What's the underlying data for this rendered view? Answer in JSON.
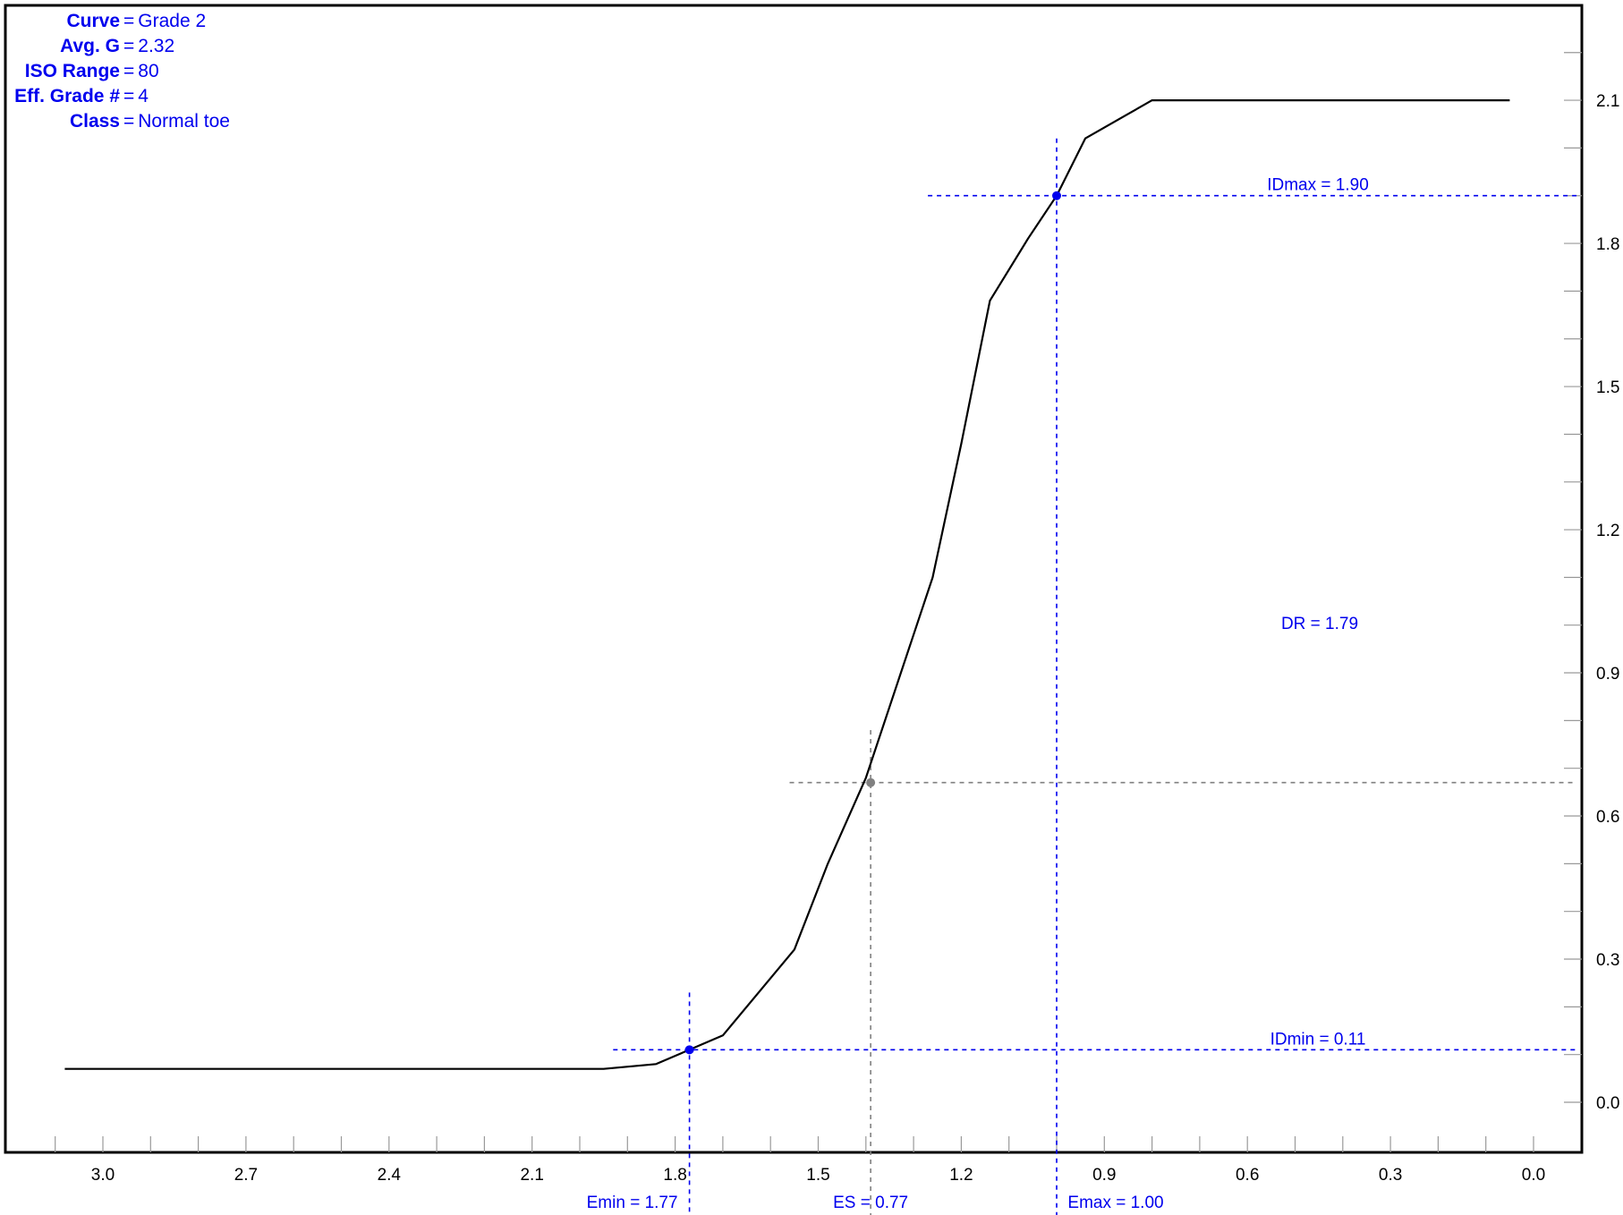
{
  "info": {
    "rows": [
      {
        "key": "Curve",
        "value": "Grade 2"
      },
      {
        "key": "Avg. G",
        "value": "2.32"
      },
      {
        "key": "ISO Range",
        "value": "80"
      },
      {
        "key": "Eff. Grade #",
        "value": "4"
      },
      {
        "key": "Class",
        "value": "Normal toe"
      }
    ]
  },
  "colors": {
    "curve": "#000000",
    "marker": "#0000ee",
    "es_marker": "#808080",
    "frame": "#000000"
  },
  "chart_data": {
    "type": "line",
    "x_ticks": [
      "3.0",
      "2.7",
      "2.4",
      "2.1",
      "1.8",
      "1.5",
      "1.2",
      "0.9",
      "0.6",
      "0.3",
      "0.0"
    ],
    "y_ticks": [
      "0.0",
      "0.3",
      "0.6",
      "0.9",
      "1.2",
      "1.5",
      "1.8",
      "2.1"
    ],
    "xlim": [
      3.18,
      -0.1
    ],
    "ylim": [
      -0.1,
      2.28
    ],
    "x_reversed": true,
    "series": [
      {
        "points": [
          [
            3.08,
            0.07
          ],
          [
            1.95,
            0.07
          ],
          [
            1.84,
            0.08
          ],
          [
            1.77,
            0.11
          ],
          [
            1.7,
            0.14
          ],
          [
            1.55,
            0.32
          ],
          [
            1.48,
            0.5
          ],
          [
            1.4,
            0.68
          ],
          [
            1.33,
            0.89
          ],
          [
            1.26,
            1.1
          ],
          [
            1.2,
            1.38
          ],
          [
            1.14,
            1.68
          ],
          [
            1.06,
            1.81
          ],
          [
            1.0,
            1.9
          ],
          [
            0.94,
            2.02
          ],
          [
            0.8,
            2.1
          ],
          [
            0.05,
            2.1
          ]
        ]
      }
    ],
    "markers": [
      {
        "label": "Emin = 1.77",
        "x": 1.77,
        "y": 0.11
      },
      {
        "label": "ES = 0.77",
        "x": 1.39,
        "y": 0.67
      },
      {
        "label": "Emax = 1.00",
        "x": 1.0,
        "y": 1.9
      }
    ],
    "reference_lines": [
      {
        "label": "IDmax = 1.90",
        "y": 1.9
      },
      {
        "label": "IDmin = 0.11",
        "y": 0.11
      }
    ],
    "annotations": [
      {
        "label": "DR = 1.79",
        "x": 0.44,
        "y": 1.0
      }
    ]
  }
}
